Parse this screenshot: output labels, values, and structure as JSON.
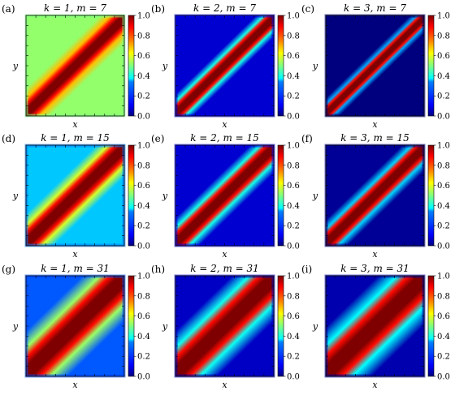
{
  "figure": {
    "colormap": "jet",
    "colormap_stops": [
      "#00007f",
      "#0000ff",
      "#007fff",
      "#00ffff",
      "#7fff7f",
      "#ffff00",
      "#ff7f00",
      "#ff0000",
      "#7f0000"
    ]
  },
  "chart_data": [
    {
      "type": "heatmap",
      "label": "(a)",
      "title": "k = 1, m = 7",
      "k": 1,
      "m": 7,
      "xlabel": "x",
      "ylabel": "y",
      "colorbar_ticks": [
        "0.0",
        "0.2",
        "0.4",
        "0.6",
        "0.8",
        "1.0"
      ],
      "clim": [
        0,
        1
      ],
      "diagonal_value": 1.0,
      "background_value": 0.52,
      "band_width": 0.065,
      "edge_value": 0.5
    },
    {
      "type": "heatmap",
      "label": "(b)",
      "title": "k = 2, m = 7",
      "k": 2,
      "m": 7,
      "xlabel": "x",
      "ylabel": "y",
      "colorbar_ticks": [
        "0.0",
        "0.2",
        "0.4",
        "0.6",
        "0.8",
        "1.0"
      ],
      "clim": [
        0,
        1
      ],
      "diagonal_value": 1.0,
      "background_value": 0.07,
      "band_width": 0.05,
      "edge_value": 0.1
    },
    {
      "type": "heatmap",
      "label": "(c)",
      "title": "k = 3, m = 7",
      "k": 3,
      "m": 7,
      "xlabel": "x",
      "ylabel": "y",
      "colorbar_ticks": [
        "0.0",
        "0.2",
        "0.4",
        "0.6",
        "0.8",
        "1.0"
      ],
      "clim": [
        0,
        1
      ],
      "diagonal_value": 1.0,
      "background_value": 0.0,
      "band_width": 0.04,
      "edge_value": 0.0
    },
    {
      "type": "heatmap",
      "label": "(d)",
      "title": "k = 1, m = 15",
      "k": 1,
      "m": 15,
      "xlabel": "x",
      "ylabel": "y",
      "colorbar_ticks": [
        "0.0",
        "0.2",
        "0.4",
        "0.6",
        "0.8",
        "1.0"
      ],
      "clim": [
        0,
        1
      ],
      "diagonal_value": 1.0,
      "background_value": 0.36,
      "band_width": 0.075,
      "edge_value": 0.33
    },
    {
      "type": "heatmap",
      "label": "(e)",
      "title": "k = 2, m = 15",
      "k": 2,
      "m": 15,
      "xlabel": "x",
      "ylabel": "y",
      "colorbar_ticks": [
        "0.0",
        "0.2",
        "0.4",
        "0.6",
        "0.8",
        "1.0"
      ],
      "clim": [
        0,
        1
      ],
      "diagonal_value": 1.0,
      "background_value": 0.07,
      "band_width": 0.065,
      "edge_value": 0.1
    },
    {
      "type": "heatmap",
      "label": "(f)",
      "title": "k = 3, m = 15",
      "k": 3,
      "m": 15,
      "xlabel": "x",
      "ylabel": "y",
      "colorbar_ticks": [
        "0.0",
        "0.2",
        "0.4",
        "0.6",
        "0.8",
        "1.0"
      ],
      "clim": [
        0,
        1
      ],
      "diagonal_value": 1.0,
      "background_value": 0.02,
      "band_width": 0.06,
      "edge_value": 0.02
    },
    {
      "type": "heatmap",
      "label": "(g)",
      "title": "k = 1, m = 31",
      "k": 1,
      "m": 31,
      "xlabel": "x",
      "ylabel": "y",
      "colorbar_ticks": [
        "0.0",
        "0.2",
        "0.4",
        "0.6",
        "0.8",
        "1.0"
      ],
      "clim": [
        0,
        1
      ],
      "diagonal_value": 1.0,
      "background_value": 0.27,
      "band_width": 0.11,
      "edge_value": 0.25
    },
    {
      "type": "heatmap",
      "label": "(h)",
      "title": "k = 2, m = 31",
      "k": 2,
      "m": 31,
      "xlabel": "x",
      "ylabel": "y",
      "colorbar_ticks": [
        "0.0",
        "0.2",
        "0.4",
        "0.6",
        "0.8",
        "1.0"
      ],
      "clim": [
        0,
        1
      ],
      "diagonal_value": 1.0,
      "background_value": 0.06,
      "band_width": 0.11,
      "edge_value": 0.06
    },
    {
      "type": "heatmap",
      "label": "(i)",
      "title": "k = 3, m = 31",
      "k": 3,
      "m": 31,
      "xlabel": "x",
      "ylabel": "y",
      "colorbar_ticks": [
        "0.0",
        "0.2",
        "0.4",
        "0.6",
        "0.8",
        "1.0"
      ],
      "clim": [
        0,
        1
      ],
      "diagonal_value": 1.0,
      "background_value": 0.04,
      "band_width": 0.12,
      "edge_value": 0.04
    }
  ]
}
